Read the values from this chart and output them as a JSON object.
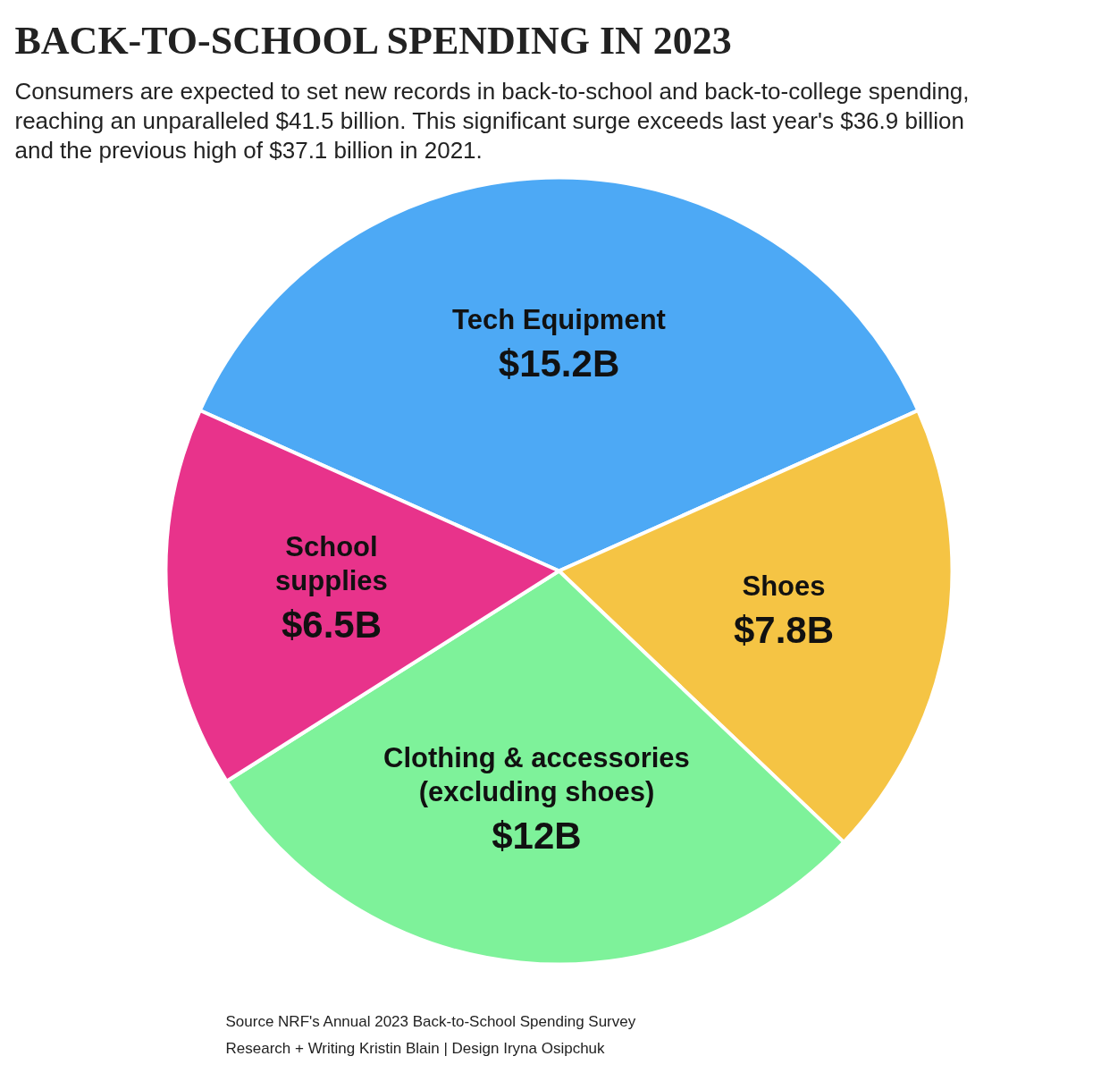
{
  "chart_data": {
    "type": "pie",
    "title": "BACK-TO-SCHOOL SPENDING IN 2023",
    "subtitle": "Consumers are expected to set new records in back-to-school and back-to-college spending,\nreaching an unparalleled $41.5 billion. This significant surge exceeds last year's $36.9 billion\nand the previous high of $37.1 billion in 2021.",
    "categories": [
      "Tech Equipment",
      "Shoes",
      "Clothing & accessories\n(excluding shoes)",
      "School\nsupplies"
    ],
    "values": [
      15.2,
      7.8,
      12,
      6.5
    ],
    "value_labels": [
      "$15.2B",
      "$7.8B",
      "$12B",
      "$6.5B"
    ],
    "colors": [
      "#4da9f5",
      "#f5c444",
      "#7ef29a",
      "#e8338b"
    ],
    "annotations": [
      "Source NRF's Annual 2023 Back-to-School Spending Survey",
      "Research + Writing Kristin Blain | Design Iryna Osipchuk"
    ]
  }
}
